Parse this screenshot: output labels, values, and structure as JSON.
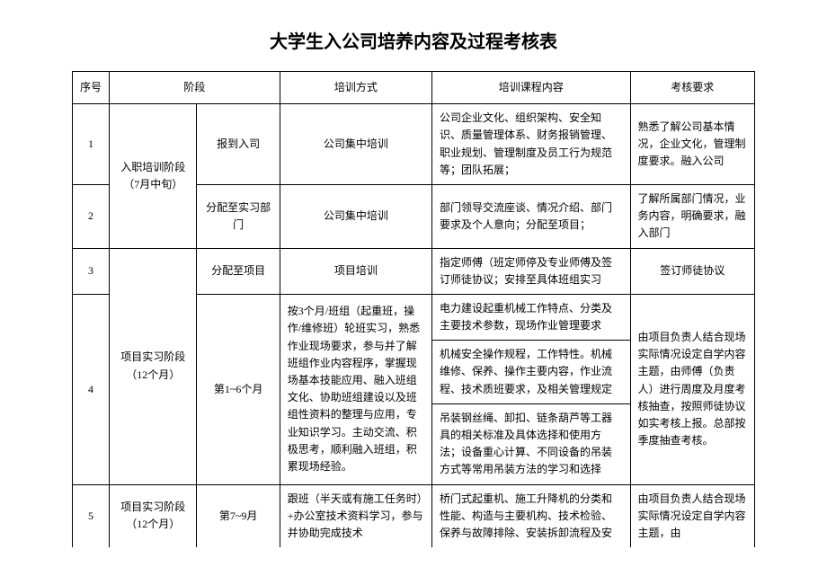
{
  "title": "大学生入公司培养内容及过程考核表",
  "headers": {
    "seq": "序号",
    "phase": "阶段",
    "method": "培训方式",
    "content": "培训课程内容",
    "assess": "考核要求"
  },
  "rows": {
    "r1": {
      "seq": "1",
      "phase1": "入职培训阶段（7月中旬）",
      "phase2": "报到入司",
      "method": "公司集中培训",
      "content": "公司企业文化、组织架构、安全知识、质量管理体系、财务报销管理、职业规划、管理制度及员工行为规范等；团队拓展；",
      "assess": "熟悉了解公司基本情况，企业文化，管理制度要求。融入公司"
    },
    "r2": {
      "seq": "2",
      "phase2": "分配至实习部门",
      "method": "公司集中培训",
      "content": "部门领导交流座谈、情况介绍、部门要求及个人意向；分配至项目；",
      "assess": "了解所属部门情况，业务内容，明确要求，融入部门"
    },
    "r3": {
      "seq": "3",
      "phase1": "项目实习阶段（12个月）",
      "phase2": "分配至项目",
      "method": "项目培训",
      "content": "指定师傅（班定师停及专业师傅及签订师徒协议；安排至具体班组实习",
      "assess": "签订师徒协议"
    },
    "r4": {
      "seq": "4",
      "phase2": "第1~6个月",
      "method": "按3个月/班组（起重班，操作/维修班）轮班实习，熟悉作业现场要求，参与并了解班组作业内容程序，掌握现场基本技能应用、融入班组文化、协助班组建设以及班组性资料的整理与应用，专业知识学习。主动交流、积极思考，顺利融入班组，积累现场经验。",
      "content_a": "电力建设起重机械工作特点、分类及主要技术参数，现场作业管理要求",
      "content_b": "机械安全操作规程，工作特性。机械维修、保养、操作主要内容，作业流程、技术质班要求，及相关管理规定",
      "content_c": "吊装钢丝绳、卸扣、链条葫芦等工器具的相关标准及具体选择和使用方法；设备重心计算、不同设备的吊装方式等常用吊装方法的学习和选择",
      "assess": "由项目负责人结合现场实际情况设定自学内容主题，由师傅（负责人）进行周度及月度考核抽查，按照师徒协议如实考核上报。总部按季度抽查考核。"
    },
    "r5": {
      "seq": "5",
      "phase1": "项目实习阶段（12个月）",
      "phase2": "第7~9月",
      "method": "跟班（半天或有施工任务时）+办公室技术资料学习，参与并协助完成技术",
      "content": "桥门式起重机、施工升降机的分类和性能、构造与主要机构、技术检验、保养与故障排除、安装拆卸流程及安",
      "assess": "由项目负责人结合现场实际情况设定自学内容主题，由"
    }
  }
}
